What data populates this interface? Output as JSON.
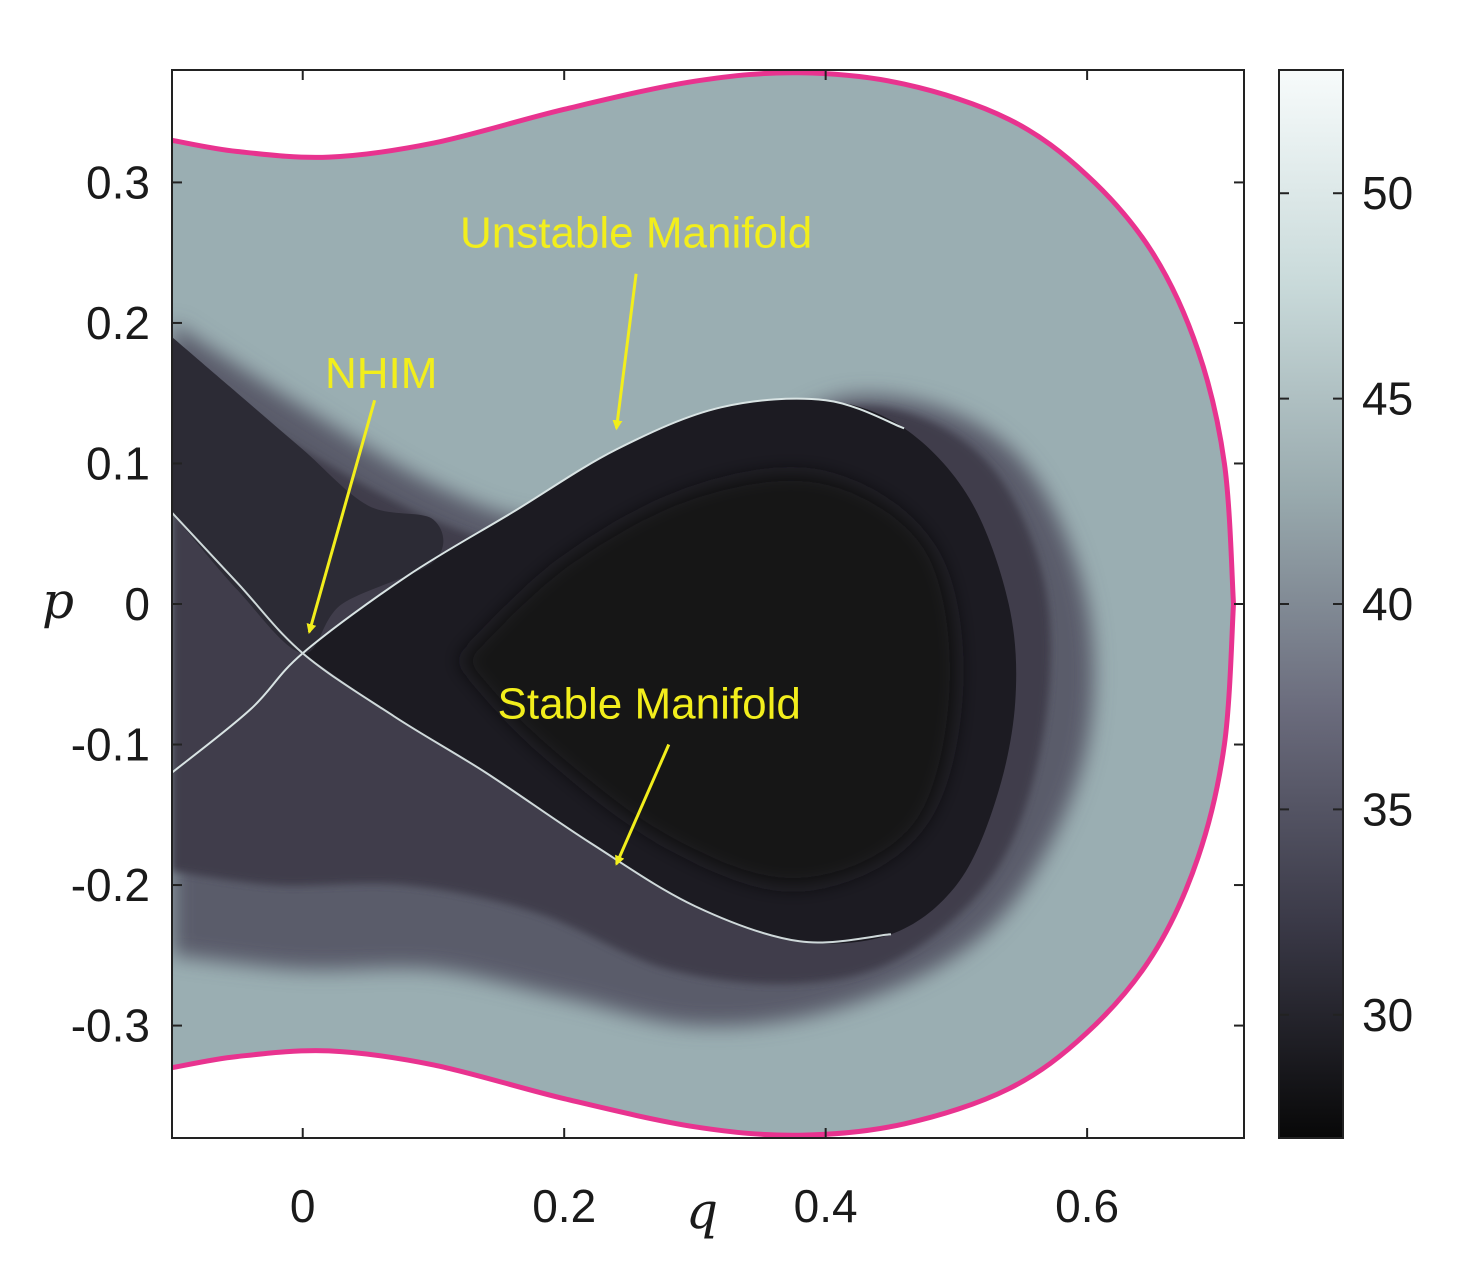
{
  "chart_data": {
    "type": "heatmap",
    "title": "",
    "xlabel": "q",
    "ylabel": "p",
    "xlim": [
      -0.1,
      0.72
    ],
    "ylim": [
      -0.38,
      0.38
    ],
    "x_ticks": [
      {
        "value": 0,
        "label": "0"
      },
      {
        "value": 0.2,
        "label": "0.2"
      },
      {
        "value": 0.4,
        "label": "0.4"
      },
      {
        "value": 0.6,
        "label": "0.6"
      }
    ],
    "y_ticks": [
      {
        "value": 0.3,
        "label": "0.3"
      },
      {
        "value": 0.2,
        "label": "0.2"
      },
      {
        "value": 0.1,
        "label": "0.1"
      },
      {
        "value": 0,
        "label": "0"
      },
      {
        "value": -0.1,
        "label": "-0.1"
      },
      {
        "value": -0.2,
        "label": "-0.2"
      },
      {
        "value": -0.3,
        "label": "-0.3"
      }
    ],
    "colorbar": {
      "range": [
        27,
        53
      ],
      "ticks": [
        {
          "value": 30,
          "label": "30"
        },
        {
          "value": 35,
          "label": "35"
        },
        {
          "value": 40,
          "label": "40"
        },
        {
          "value": 45,
          "label": "45"
        },
        {
          "value": 50,
          "label": "50"
        }
      ],
      "colormap": [
        "#080808",
        "#3a3947",
        "#6a6b7c",
        "#98a9ad",
        "#c9dada",
        "#f7fbfb"
      ]
    },
    "energy_boundary_color": "#e8338f",
    "annotations": [
      {
        "text": "Unstable Manifold",
        "x": 0.255,
        "y": 0.265
      },
      {
        "text": "NHIM",
        "x": 0.06,
        "y": 0.165
      },
      {
        "text": "Stable Manifold",
        "x": 0.265,
        "y": -0.07
      }
    ],
    "arrow_color": "#f2ee1c"
  }
}
